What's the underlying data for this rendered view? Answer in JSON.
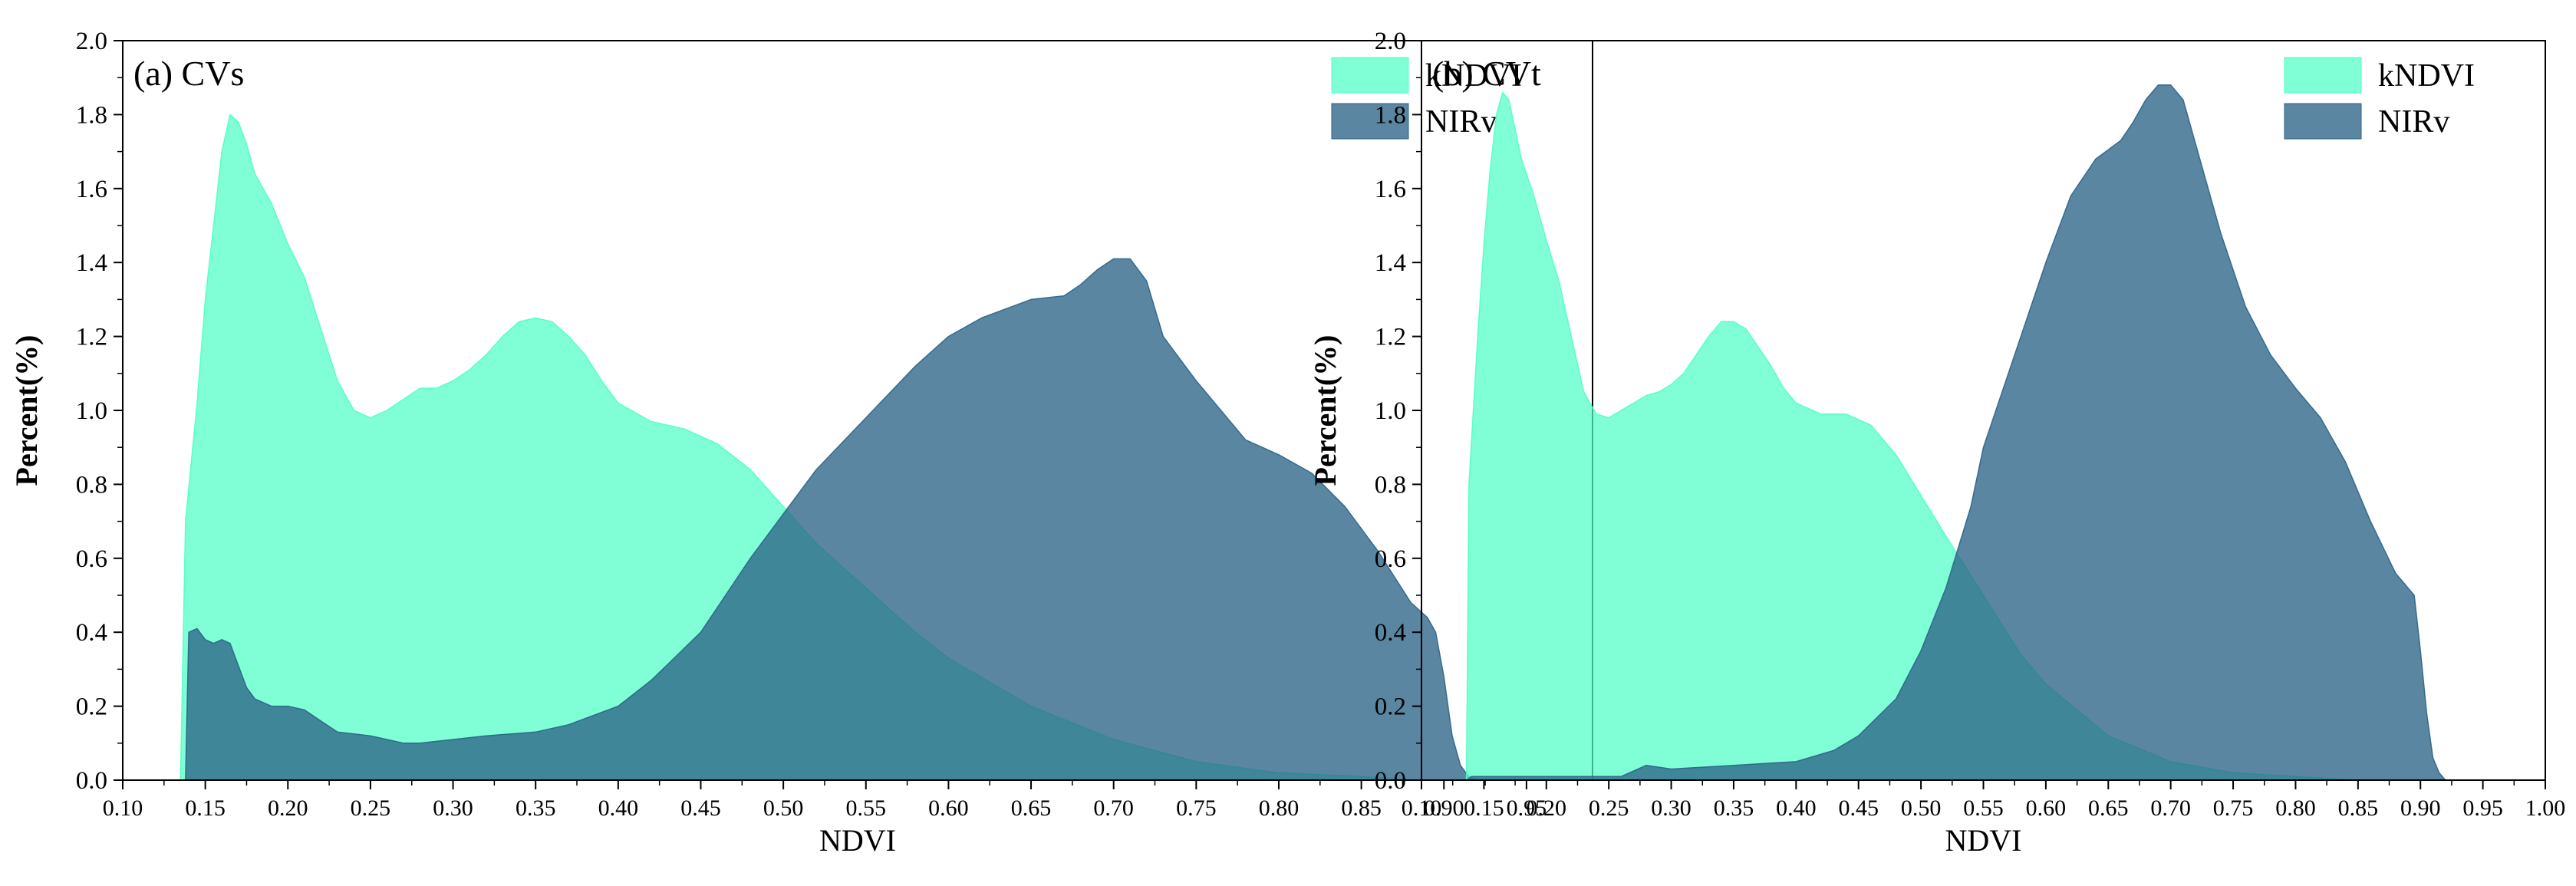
{
  "colors": {
    "kndvi": "#4fffc6",
    "nirv": "#2b6487",
    "axis": "#000000",
    "background": "#ffffff"
  },
  "chart_data": [
    {
      "type": "area",
      "title": "(a) CVs",
      "xlabel": "NDVI",
      "ylabel": "Percent(%)",
      "xlim": [
        0.1,
        0.99
      ],
      "ylim": [
        0,
        2.0
      ],
      "xticks": [
        "0.10",
        "0.15",
        "0.20",
        "0.25",
        "0.30",
        "0.35",
        "0.40",
        "0.45",
        "0.50",
        "0.55",
        "0.60",
        "0.65",
        "0.70",
        "0.75",
        "0.80",
        "0.85",
        "0.90",
        "0.95"
      ],
      "yticks": [
        "0.0",
        "0.2",
        "0.4",
        "0.6",
        "0.8",
        "1.0",
        "1.2",
        "1.4",
        "1.6",
        "1.8",
        "2.0"
      ],
      "legend_position": "top-right",
      "series": [
        {
          "name": "kNDVI",
          "color": "#4fffc6",
          "opacity": 0.72,
          "x": [
            0.1,
            0.135,
            0.138,
            0.145,
            0.15,
            0.155,
            0.16,
            0.165,
            0.17,
            0.175,
            0.18,
            0.19,
            0.2,
            0.21,
            0.22,
            0.23,
            0.24,
            0.25,
            0.26,
            0.27,
            0.28,
            0.29,
            0.3,
            0.31,
            0.32,
            0.33,
            0.34,
            0.35,
            0.36,
            0.37,
            0.38,
            0.39,
            0.4,
            0.42,
            0.44,
            0.46,
            0.48,
            0.5,
            0.52,
            0.55,
            0.58,
            0.6,
            0.65,
            0.7,
            0.75,
            0.8,
            0.85,
            0.88,
            0.9,
            0.92,
            0.99
          ],
          "y": [
            0,
            0,
            0.7,
            1.02,
            1.3,
            1.5,
            1.7,
            1.8,
            1.78,
            1.72,
            1.64,
            1.56,
            1.45,
            1.36,
            1.22,
            1.08,
            1.0,
            0.98,
            1.0,
            1.03,
            1.06,
            1.06,
            1.08,
            1.11,
            1.15,
            1.2,
            1.24,
            1.25,
            1.24,
            1.2,
            1.15,
            1.08,
            1.02,
            0.97,
            0.95,
            0.91,
            0.84,
            0.74,
            0.64,
            0.52,
            0.4,
            0.33,
            0.2,
            0.11,
            0.05,
            0.02,
            0.01,
            0,
            0,
            0,
            0
          ]
        },
        {
          "name": "NIRv",
          "color": "#2b6487",
          "opacity": 0.78,
          "x": [
            0.1,
            0.138,
            0.14,
            0.145,
            0.15,
            0.155,
            0.16,
            0.165,
            0.17,
            0.175,
            0.18,
            0.19,
            0.2,
            0.21,
            0.22,
            0.23,
            0.25,
            0.27,
            0.28,
            0.3,
            0.32,
            0.35,
            0.37,
            0.4,
            0.42,
            0.45,
            0.48,
            0.5,
            0.52,
            0.55,
            0.58,
            0.6,
            0.62,
            0.65,
            0.67,
            0.68,
            0.69,
            0.7,
            0.71,
            0.72,
            0.73,
            0.75,
            0.78,
            0.8,
            0.82,
            0.84,
            0.86,
            0.88,
            0.89,
            0.895,
            0.9,
            0.905,
            0.91,
            0.915,
            0.92,
            0.99
          ],
          "y": [
            0,
            0,
            0.4,
            0.41,
            0.38,
            0.37,
            0.38,
            0.37,
            0.31,
            0.25,
            0.22,
            0.2,
            0.2,
            0.19,
            0.16,
            0.13,
            0.12,
            0.1,
            0.1,
            0.11,
            0.12,
            0.13,
            0.15,
            0.2,
            0.27,
            0.4,
            0.6,
            0.72,
            0.84,
            0.98,
            1.12,
            1.2,
            1.25,
            1.3,
            1.31,
            1.34,
            1.38,
            1.41,
            1.41,
            1.35,
            1.2,
            1.08,
            0.92,
            0.88,
            0.83,
            0.74,
            0.62,
            0.48,
            0.44,
            0.4,
            0.28,
            0.12,
            0.04,
            0.01,
            0,
            0
          ]
        }
      ]
    },
    {
      "type": "area",
      "title": "(b) CVt",
      "xlabel": "NDVI",
      "ylabel": "Percent(%)",
      "xlim": [
        0.1,
        1.0
      ],
      "ylim": [
        0,
        2.0
      ],
      "xticks": [
        "0.10",
        "0.15",
        "0.20",
        "0.25",
        "0.30",
        "0.35",
        "0.40",
        "0.45",
        "0.50",
        "0.55",
        "0.60",
        "0.65",
        "0.70",
        "0.75",
        "0.80",
        "0.85",
        "0.90",
        "0.95",
        "1.00"
      ],
      "yticks": [
        "0.0",
        "0.2",
        "0.4",
        "0.6",
        "0.8",
        "1.0",
        "1.2",
        "1.4",
        "1.6",
        "1.8",
        "2.0"
      ],
      "legend_position": "top-right",
      "series": [
        {
          "name": "kNDVI",
          "color": "#4fffc6",
          "opacity": 0.72,
          "x": [
            0.1,
            0.136,
            0.138,
            0.145,
            0.15,
            0.155,
            0.16,
            0.165,
            0.17,
            0.175,
            0.18,
            0.19,
            0.2,
            0.21,
            0.22,
            0.23,
            0.24,
            0.25,
            0.26,
            0.27,
            0.28,
            0.29,
            0.3,
            0.31,
            0.32,
            0.33,
            0.34,
            0.35,
            0.36,
            0.37,
            0.38,
            0.39,
            0.4,
            0.42,
            0.44,
            0.46,
            0.48,
            0.5,
            0.52,
            0.55,
            0.58,
            0.6,
            0.65,
            0.7,
            0.75,
            0.8,
            0.85,
            0.9,
            0.99
          ],
          "y": [
            0,
            0,
            0.8,
            1.2,
            1.45,
            1.65,
            1.8,
            1.86,
            1.84,
            1.76,
            1.68,
            1.58,
            1.46,
            1.35,
            1.2,
            1.05,
            0.99,
            0.98,
            1.0,
            1.02,
            1.04,
            1.05,
            1.07,
            1.1,
            1.15,
            1.2,
            1.24,
            1.24,
            1.22,
            1.17,
            1.12,
            1.06,
            1.02,
            0.99,
            0.99,
            0.96,
            0.88,
            0.77,
            0.66,
            0.5,
            0.34,
            0.26,
            0.12,
            0.05,
            0.02,
            0.01,
            0,
            0,
            0
          ]
        },
        {
          "name": "NIRv",
          "color": "#2b6487",
          "opacity": 0.78,
          "x": [
            0.1,
            0.136,
            0.14,
            0.2,
            0.26,
            0.28,
            0.3,
            0.35,
            0.4,
            0.43,
            0.45,
            0.48,
            0.5,
            0.52,
            0.54,
            0.55,
            0.57,
            0.6,
            0.62,
            0.64,
            0.66,
            0.67,
            0.68,
            0.69,
            0.7,
            0.71,
            0.72,
            0.74,
            0.76,
            0.78,
            0.8,
            0.82,
            0.84,
            0.86,
            0.88,
            0.895,
            0.9,
            0.905,
            0.91,
            0.915,
            0.92,
            1.0
          ],
          "y": [
            0,
            0,
            0.01,
            0.01,
            0.01,
            0.04,
            0.03,
            0.04,
            0.05,
            0.08,
            0.12,
            0.22,
            0.35,
            0.52,
            0.74,
            0.9,
            1.1,
            1.4,
            1.58,
            1.68,
            1.73,
            1.78,
            1.84,
            1.88,
            1.88,
            1.84,
            1.72,
            1.48,
            1.28,
            1.15,
            1.06,
            0.98,
            0.86,
            0.7,
            0.56,
            0.5,
            0.35,
            0.18,
            0.06,
            0.02,
            0,
            0
          ]
        }
      ]
    }
  ]
}
